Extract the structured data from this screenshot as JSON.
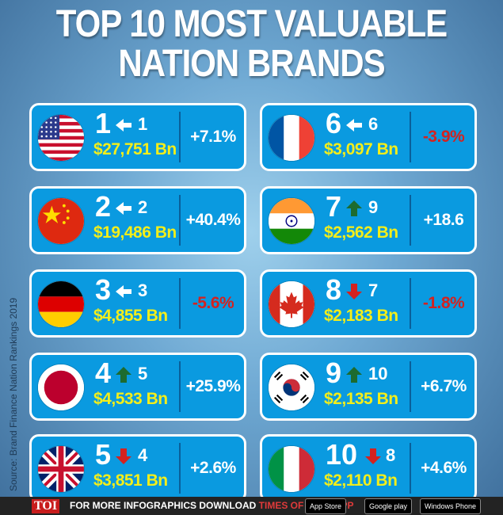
{
  "title": {
    "line1": "TOP 10 MOST VALUABLE",
    "line2": "NATION BRANDS"
  },
  "source": "Source: Brand Finance Nation Rankings 2019",
  "colors": {
    "card_bg": "#0a9ae0",
    "value_yellow": "#f3ee1a",
    "negative_red": "#d4221f",
    "arrow_green": "#1d6b2f",
    "arrow_red": "#d4221f"
  },
  "brands": [
    {
      "rank": "1",
      "prev": "1",
      "move": "same",
      "value": "$27,751 Bn",
      "change": "+7.1%",
      "change_sign": "pos",
      "flag": "usa-flag-icon"
    },
    {
      "rank": "2",
      "prev": "2",
      "move": "same",
      "value": "$19,486 Bn",
      "change": "+40.4%",
      "change_sign": "pos",
      "flag": "china-flag-icon"
    },
    {
      "rank": "3",
      "prev": "3",
      "move": "same",
      "value": "$4,855 Bn",
      "change": "-5.6%",
      "change_sign": "neg",
      "flag": "germany-flag-icon"
    },
    {
      "rank": "4",
      "prev": "5",
      "move": "up",
      "value": "$4,533 Bn",
      "change": "+25.9%",
      "change_sign": "pos",
      "flag": "japan-flag-icon"
    },
    {
      "rank": "5",
      "prev": "4",
      "move": "down",
      "value": "$3,851 Bn",
      "change": "+2.6%",
      "change_sign": "pos",
      "flag": "uk-flag-icon"
    },
    {
      "rank": "6",
      "prev": "6",
      "move": "same",
      "value": "$3,097 Bn",
      "change": "-3.9%",
      "change_sign": "neg",
      "flag": "france-flag-icon"
    },
    {
      "rank": "7",
      "prev": "9",
      "move": "up",
      "value": "$2,562 Bn",
      "change": "+18.6",
      "change_sign": "pos",
      "flag": "india-flag-icon"
    },
    {
      "rank": "8",
      "prev": "7",
      "move": "down",
      "value": "$2,183 Bn",
      "change": "-1.8%",
      "change_sign": "neg",
      "flag": "canada-flag-icon"
    },
    {
      "rank": "9",
      "prev": "10",
      "move": "up",
      "value": "$2,135 Bn",
      "change": "+6.7%",
      "change_sign": "pos",
      "flag": "south-korea-flag-icon"
    },
    {
      "rank": "10",
      "prev": "8",
      "move": "down",
      "value": "$2,110 Bn",
      "change": "+4.6%",
      "change_sign": "pos",
      "flag": "italy-flag-icon"
    }
  ],
  "footer": {
    "brand": "TOI",
    "text_prefix": "FOR MORE  INFOGRAPHICS DOWNLOAD ",
    "text_app": "TIMES OF INDIA  APP",
    "app_store": "App Store",
    "google_play": "Google play",
    "windows_phone": "Windows Phone"
  }
}
